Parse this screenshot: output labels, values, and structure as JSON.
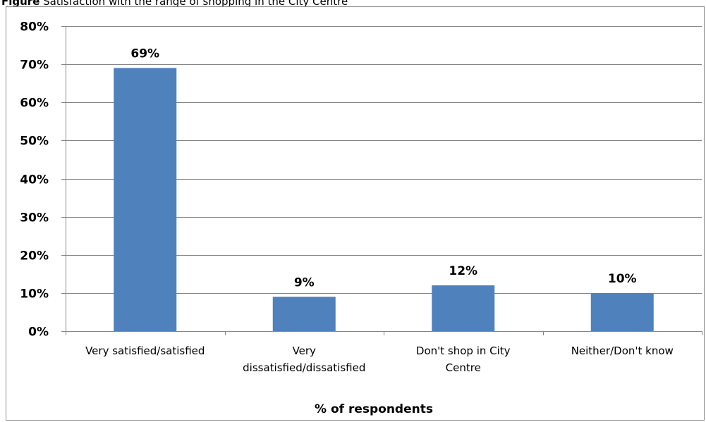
{
  "caption": {
    "label": "Figure",
    "text": "Satisfaction with the range of shopping in the City Centre"
  },
  "chart_data": {
    "type": "bar",
    "categories": [
      "Very satisfied/satisfied",
      "Very dissatisfied/dissatisfied",
      "Don't shop in City Centre",
      "Neither/Don't know"
    ],
    "category_lines": [
      [
        "Very satisfied/satisfied"
      ],
      [
        "Very",
        "dissatisfied/dissatisfied"
      ],
      [
        "Don't shop in City",
        "Centre"
      ],
      [
        "Neither/Don't know"
      ]
    ],
    "values": [
      69,
      9,
      12,
      10
    ],
    "value_labels": [
      "69%",
      "9%",
      "12%",
      "10%"
    ],
    "xlabel": "% of respondents",
    "ylabel": "",
    "ylim": [
      0,
      80
    ],
    "yticks": [
      0,
      10,
      20,
      30,
      40,
      50,
      60,
      70,
      80
    ],
    "ytick_labels": [
      "0%",
      "10%",
      "20%",
      "30%",
      "40%",
      "50%",
      "60%",
      "70%",
      "80%"
    ],
    "grid": true,
    "legend": "none",
    "colors": {
      "bar": "#4f81bd",
      "grid": "#868686",
      "axis": "#868686",
      "text": "#000000"
    }
  }
}
